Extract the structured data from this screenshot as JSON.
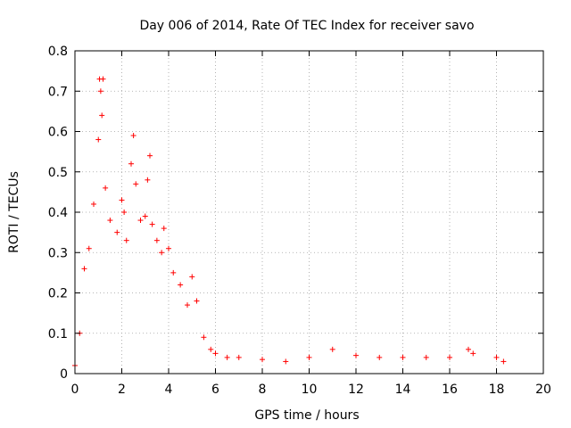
{
  "chart_data": {
    "type": "scatter",
    "title": "Day 006 of 2014, Rate Of TEC Index for receiver savo",
    "xlabel": "GPS time / hours",
    "ylabel": "ROTI / TECUs",
    "xlim": [
      0,
      20
    ],
    "ylim": [
      0,
      0.8
    ],
    "xticks": [
      "0",
      "2",
      "4",
      "6",
      "8",
      "10",
      "12",
      "14",
      "16",
      "18",
      "20"
    ],
    "yticks": [
      "0",
      "0.1",
      "0.2",
      "0.3",
      "0.4",
      "0.5",
      "0.6",
      "0.7",
      "0.8"
    ],
    "grid": true,
    "marker": "+",
    "color": "#ff0000",
    "series": [
      {
        "name": "ROTI",
        "x": [
          0.0,
          0.2,
          0.4,
          0.6,
          0.8,
          1.0,
          1.05,
          1.1,
          1.15,
          1.2,
          1.3,
          1.5,
          1.8,
          2.0,
          2.1,
          2.2,
          2.4,
          2.5,
          2.6,
          2.8,
          3.0,
          3.1,
          3.2,
          3.3,
          3.5,
          3.7,
          3.8,
          4.0,
          4.2,
          4.5,
          4.8,
          5.0,
          5.2,
          5.5,
          5.8,
          6.0,
          6.5,
          7.0,
          8.0,
          9.0,
          10.0,
          11.0,
          12.0,
          13.0,
          14.0,
          15.0,
          16.0,
          16.8,
          17.0,
          18.0,
          18.3
        ],
        "y": [
          0.02,
          0.1,
          0.26,
          0.31,
          0.42,
          0.58,
          0.73,
          0.7,
          0.64,
          0.73,
          0.46,
          0.38,
          0.35,
          0.43,
          0.4,
          0.33,
          0.52,
          0.59,
          0.47,
          0.38,
          0.39,
          0.48,
          0.54,
          0.37,
          0.33,
          0.3,
          0.36,
          0.31,
          0.25,
          0.22,
          0.17,
          0.24,
          0.18,
          0.09,
          0.06,
          0.05,
          0.04,
          0.04,
          0.035,
          0.03,
          0.04,
          0.06,
          0.045,
          0.04,
          0.04,
          0.04,
          0.04,
          0.06,
          0.05,
          0.04,
          0.03
        ]
      }
    ]
  }
}
